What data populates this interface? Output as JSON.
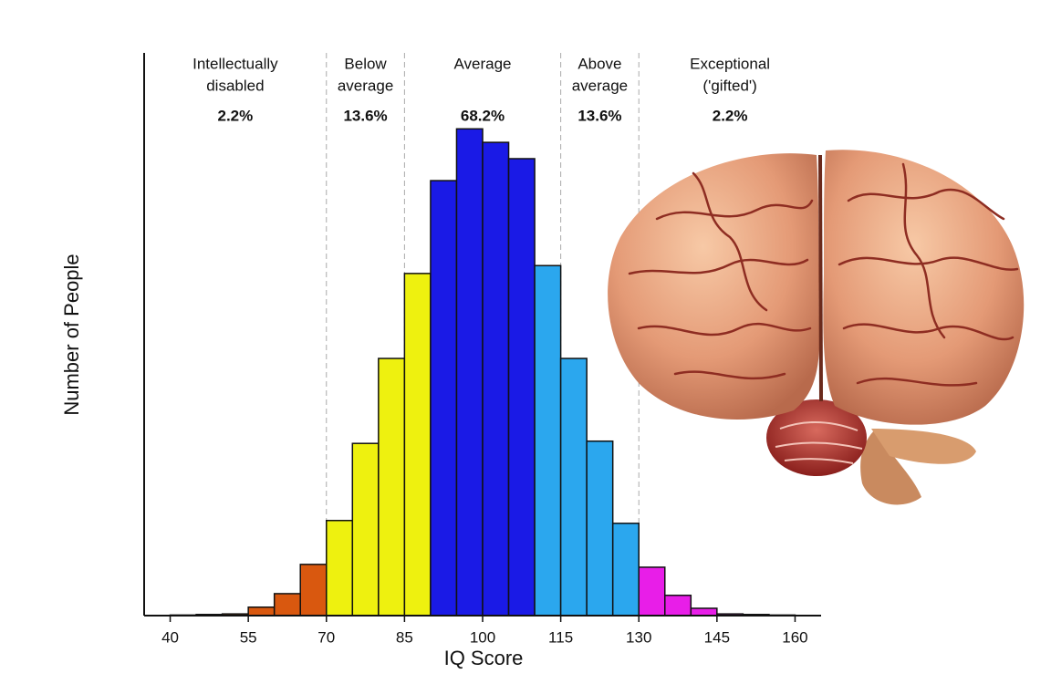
{
  "chart_data": {
    "type": "histogram",
    "x_label": "IQ Score",
    "y_label": "Number of People",
    "bins": [
      40,
      45,
      50,
      55,
      60,
      65,
      70,
      75,
      80,
      85,
      90,
      95,
      100,
      105,
      110,
      115,
      120,
      125,
      130,
      135,
      140,
      145,
      150,
      155,
      160
    ],
    "values": [
      0.1,
      0.2,
      0.3,
      1.5,
      3.9,
      9.1,
      16.9,
      30.6,
      45.7,
      60.8,
      77.3,
      86.5,
      84.1,
      81.2,
      62.2,
      45.7,
      31.0,
      16.4,
      8.6,
      3.6,
      1.3,
      0.3,
      0.2,
      0.1
    ],
    "colors": [
      "#d9580f",
      "#d9580f",
      "#d9580f",
      "#d9580f",
      "#d9580f",
      "#d9580f",
      "#eef10f",
      "#eef10f",
      "#eef10f",
      "#eef10f",
      "#1a1ae6",
      "#1a1ae6",
      "#1a1ae6",
      "#1a1ae6",
      "#2ba7ee",
      "#2ba7ee",
      "#2ba7ee",
      "#2ba7ee",
      "#e81ee8",
      "#e81ee8",
      "#e81ee8",
      "#e81ee8",
      "#e81ee8",
      "#e81ee8"
    ],
    "xlim": [
      35,
      165
    ],
    "ylim": [
      0,
      100
    ],
    "xticks": [
      40,
      55,
      70,
      85,
      100,
      115,
      130,
      145,
      160
    ],
    "dividers": [
      70,
      85,
      115,
      130
    ],
    "groups": {
      "labels": [
        [
          "Intellectually",
          "disabled"
        ],
        [
          "Below",
          "average"
        ],
        [
          "Average"
        ],
        [
          "Above",
          "average"
        ],
        [
          "Exceptional",
          "('gifted')"
        ]
      ],
      "values": [
        2.2,
        13.6,
        68.2,
        13.6,
        2.2
      ],
      "value_labels": [
        "2.2%",
        "13.6%",
        "68.2%",
        "13.6%",
        "2.2%"
      ]
    }
  }
}
